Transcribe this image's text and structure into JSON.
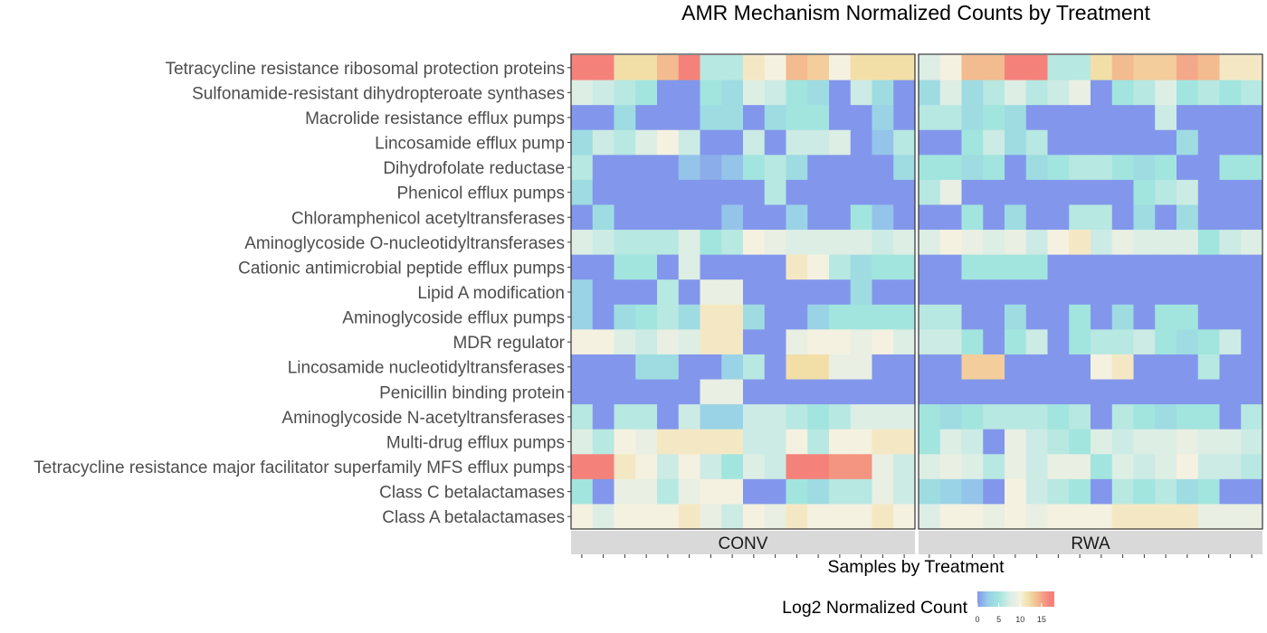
{
  "chart_data": {
    "type": "heatmap",
    "title": "AMR Mechanism Normalized Counts by Treatment",
    "xlabel": "Samples by Treatment",
    "ylabel": "",
    "rows": [
      "Tetracycline resistance ribosomal protection proteins",
      "Sulfonamide-resistant dihydropteroate synthases",
      "Macrolide resistance efflux pumps",
      "Lincosamide efflux pump",
      "Dihydrofolate reductase",
      "Phenicol efflux pumps",
      "Chloramphenicol acetyltransferases",
      "Aminoglycoside O-nucleotidyltransferases",
      "Cationic antimicrobial peptide efflux pumps",
      "Lipid A modification",
      "Aminoglycoside efflux pumps",
      "MDR regulator",
      "Lincosamide nucleotidyltransferases",
      "Penicillin binding protein",
      "Aminoglycoside N-acetyltransferases",
      "Multi-drug efflux pumps",
      "Tetracycline resistance major facilitator superfamily MFS efflux pumps",
      "Class C betalactamases",
      "Class A betalactamases"
    ],
    "facets": [
      {
        "name": "CONV",
        "values": [
          [
            17,
            17,
            12,
            12,
            14,
            17,
            6,
            6,
            11,
            10,
            14,
            13,
            10,
            12,
            12,
            12
          ],
          [
            8,
            7,
            6,
            5,
            0,
            0,
            5,
            4,
            8,
            7,
            5,
            4,
            0,
            7,
            4,
            0
          ],
          [
            0,
            0,
            4,
            0,
            0,
            0,
            4,
            4,
            0,
            4,
            5,
            5,
            0,
            0,
            3,
            0
          ],
          [
            4,
            7,
            6,
            8,
            10,
            7,
            0,
            0,
            7,
            0,
            7,
            7,
            8,
            0,
            2,
            6
          ],
          [
            6,
            0,
            0,
            0,
            0,
            2,
            1,
            2,
            5,
            6,
            4,
            0,
            0,
            0,
            0,
            4
          ],
          [
            4,
            0,
            0,
            0,
            0,
            0,
            0,
            0,
            0,
            6,
            0,
            0,
            0,
            0,
            0,
            0
          ],
          [
            0,
            4,
            0,
            0,
            0,
            0,
            0,
            2,
            0,
            0,
            3,
            0,
            0,
            5,
            2,
            0
          ],
          [
            8,
            7,
            6,
            6,
            6,
            8,
            5,
            6,
            10,
            9,
            8,
            8,
            8,
            8,
            7,
            8
          ],
          [
            0,
            0,
            5,
            5,
            0,
            8,
            0,
            0,
            0,
            0,
            11,
            10,
            6,
            4,
            5,
            5
          ],
          [
            3,
            0,
            0,
            0,
            6,
            0,
            9,
            9,
            0,
            0,
            0,
            0,
            0,
            4,
            0,
            0
          ],
          [
            3,
            0,
            4,
            5,
            6,
            4,
            11,
            11,
            4,
            0,
            0,
            3,
            5,
            5,
            5,
            5
          ],
          [
            10,
            10,
            8,
            7,
            9,
            8,
            11,
            11,
            0,
            0,
            9,
            10,
            10,
            9,
            10,
            8
          ],
          [
            0,
            0,
            0,
            4,
            4,
            0,
            0,
            3,
            6,
            0,
            12,
            12,
            9,
            9,
            0,
            0
          ],
          [
            0,
            0,
            0,
            0,
            0,
            0,
            9,
            9,
            0,
            0,
            0,
            0,
            0,
            0,
            0,
            0
          ],
          [
            6,
            0,
            6,
            6,
            0,
            7,
            3,
            3,
            7,
            7,
            6,
            5,
            6,
            8,
            8,
            8
          ],
          [
            8,
            6,
            10,
            9,
            11,
            11,
            11,
            11,
            7,
            7,
            10,
            6,
            10,
            10,
            11,
            11
          ],
          [
            17,
            17,
            11,
            10,
            7,
            10,
            7,
            5,
            8,
            7,
            17,
            17,
            16,
            16,
            9,
            7
          ],
          [
            5,
            0,
            9,
            9,
            6,
            9,
            10,
            10,
            0,
            0,
            5,
            4,
            6,
            6,
            9,
            7
          ],
          [
            10,
            8,
            10,
            10,
            10,
            11,
            9,
            7,
            10,
            9,
            11,
            10,
            10,
            10,
            11,
            10
          ]
        ]
      },
      {
        "name": "RWA",
        "values": [
          [
            8,
            10,
            14,
            14,
            17,
            17,
            6,
            6,
            12,
            14,
            13,
            13,
            15,
            14,
            11,
            11
          ],
          [
            4,
            8,
            4,
            6,
            8,
            6,
            7,
            9,
            0,
            5,
            6,
            8,
            5,
            6,
            5,
            6
          ],
          [
            6,
            6,
            4,
            5,
            4,
            0,
            0,
            0,
            0,
            0,
            0,
            7,
            0,
            0,
            0,
            0
          ],
          [
            0,
            0,
            5,
            7,
            4,
            6,
            0,
            0,
            0,
            0,
            0,
            0,
            4,
            0,
            0,
            0
          ],
          [
            5,
            5,
            4,
            5,
            0,
            4,
            5,
            6,
            6,
            5,
            4,
            5,
            0,
            0,
            5,
            5
          ],
          [
            6,
            9,
            0,
            0,
            0,
            0,
            0,
            0,
            0,
            0,
            5,
            6,
            7,
            0,
            0,
            0
          ],
          [
            0,
            0,
            5,
            0,
            4,
            0,
            0,
            6,
            6,
            0,
            4,
            0,
            4,
            0,
            0,
            0
          ],
          [
            8,
            10,
            9,
            8,
            9,
            7,
            10,
            11,
            7,
            9,
            8,
            8,
            8,
            5,
            7,
            8
          ],
          [
            0,
            0,
            5,
            5,
            5,
            5,
            0,
            0,
            0,
            0,
            0,
            0,
            0,
            0,
            0,
            0
          ],
          [
            0,
            0,
            0,
            0,
            0,
            0,
            0,
            0,
            0,
            0,
            0,
            0,
            0,
            0,
            0,
            0
          ],
          [
            6,
            6,
            0,
            0,
            4,
            0,
            0,
            5,
            0,
            4,
            0,
            5,
            5,
            0,
            0,
            0
          ],
          [
            7,
            7,
            5,
            0,
            5,
            7,
            0,
            5,
            6,
            6,
            7,
            5,
            4,
            5,
            7,
            0
          ],
          [
            0,
            0,
            13,
            13,
            0,
            0,
            0,
            0,
            10,
            11,
            0,
            0,
            0,
            6,
            0,
            0
          ],
          [
            0,
            0,
            0,
            0,
            0,
            0,
            0,
            0,
            0,
            0,
            0,
            0,
            0,
            0,
            0,
            0
          ],
          [
            5,
            4,
            5,
            6,
            6,
            6,
            5,
            6,
            0,
            6,
            5,
            4,
            5,
            5,
            0,
            6
          ],
          [
            5,
            8,
            7,
            0,
            9,
            7,
            6,
            5,
            8,
            7,
            8,
            8,
            9,
            8,
            8,
            7
          ],
          [
            8,
            9,
            8,
            6,
            9,
            7,
            9,
            9,
            5,
            8,
            7,
            8,
            10,
            7,
            7,
            6
          ],
          [
            4,
            3,
            2,
            0,
            10,
            7,
            6,
            5,
            0,
            6,
            5,
            6,
            4,
            5,
            0,
            0
          ],
          [
            8,
            10,
            10,
            9,
            10,
            9,
            10,
            10,
            10,
            11,
            11,
            11,
            11,
            9,
            9,
            9
          ]
        ]
      }
    ],
    "color_scale": {
      "label": "Log2 Normalized Count",
      "min": 0,
      "max": 18,
      "ticks": [
        0,
        5,
        10,
        15
      ],
      "stops": [
        {
          "value": 0,
          "color": "#8297ec"
        },
        {
          "value": 2.5,
          "color": "#99cfe8"
        },
        {
          "value": 5,
          "color": "#a2e5de"
        },
        {
          "value": 7.5,
          "color": "#d7ede6"
        },
        {
          "value": 10,
          "color": "#f5f1e0"
        },
        {
          "value": 12,
          "color": "#f2dfa8"
        },
        {
          "value": 14,
          "color": "#f3bb90"
        },
        {
          "value": 17,
          "color": "#f4827a"
        },
        {
          "value": 18,
          "color": "#f4827a"
        }
      ]
    },
    "grid": false,
    "legend_position": "bottom"
  }
}
